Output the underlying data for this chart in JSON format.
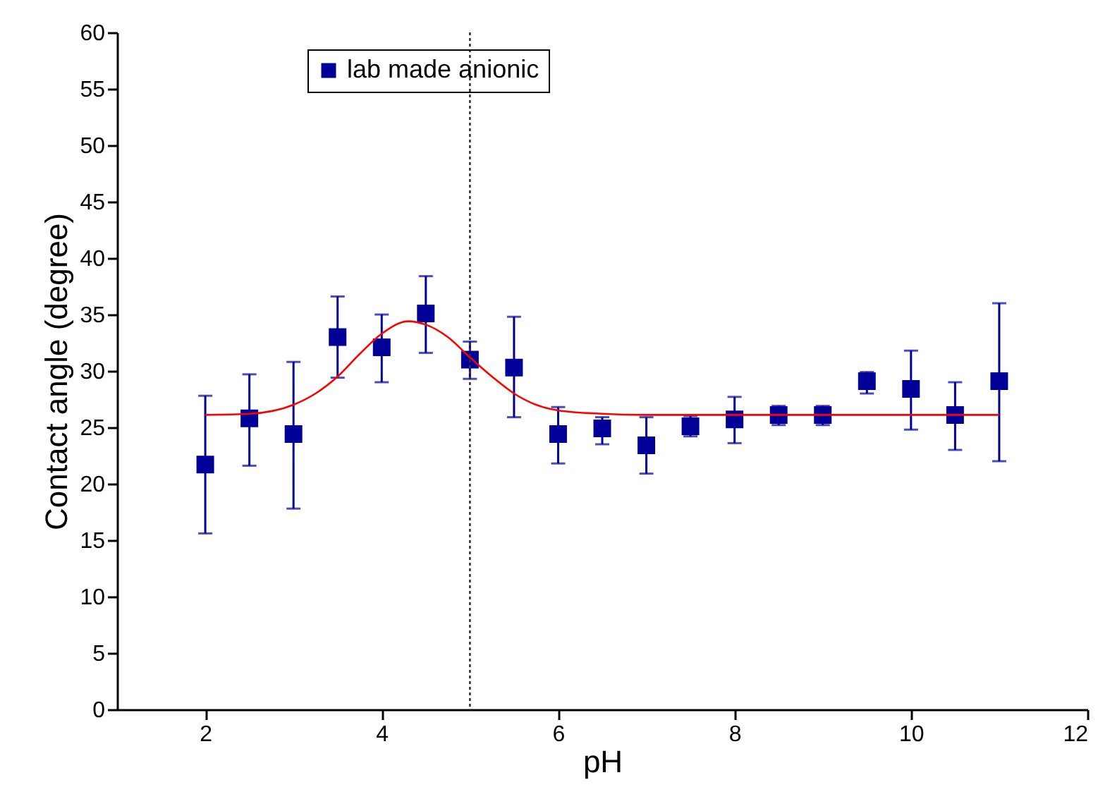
{
  "chart_data": {
    "type": "scatter",
    "xlabel": "pH",
    "ylabel": "Contact angle (degree)",
    "xlim": [
      1,
      12
    ],
    "xticks": [
      2,
      4,
      6,
      8,
      10,
      12
    ],
    "ylim": [
      0,
      60
    ],
    "yticks": [
      0,
      5,
      10,
      15,
      20,
      25,
      30,
      35,
      40,
      45,
      50,
      55,
      60
    ],
    "grid": false,
    "legend": "top left",
    "series": [
      {
        "name": "lab made anionic",
        "color": "#000099",
        "marker": "square",
        "x": [
          2,
          2.5,
          3,
          3.5,
          4,
          4.5,
          5,
          5.5,
          6,
          6.5,
          7,
          7.5,
          8,
          8.5,
          9,
          9.5,
          10,
          10.5,
          11
        ],
        "values": [
          21.7,
          25.8,
          24.4,
          33.0,
          32.1,
          35.1,
          31.0,
          30.3,
          24.4,
          24.9,
          23.4,
          25.1,
          25.7,
          26.1,
          26.1,
          29.1,
          28.4,
          26.1,
          29.1
        ],
        "errors": [
          [
            15.6,
            27.8
          ],
          [
            21.6,
            29.7
          ],
          [
            17.8,
            30.8
          ],
          [
            29.4,
            36.6
          ],
          [
            29.0,
            35.0
          ],
          [
            31.6,
            38.4
          ],
          [
            29.3,
            32.6
          ],
          [
            25.9,
            34.8
          ],
          [
            21.8,
            26.8
          ],
          [
            23.5,
            25.9
          ],
          [
            20.9,
            25.9
          ],
          [
            24.2,
            26.0
          ],
          [
            23.6,
            27.7
          ],
          [
            25.2,
            26.9
          ],
          [
            25.2,
            26.9
          ],
          [
            28.0,
            29.9
          ],
          [
            24.8,
            31.8
          ],
          [
            23.0,
            29.0
          ],
          [
            22.0,
            36.0
          ]
        ]
      },
      {
        "type": "line",
        "color": "#ff0000",
        "line_style": "solid",
        "x": [
          2,
          2.5,
          3,
          3.25,
          3.5,
          3.75,
          4,
          4.3,
          4.5,
          4.75,
          5,
          5.25,
          5.5,
          5.75,
          6,
          6.5,
          7,
          8,
          11
        ],
        "values": [
          26.1,
          26.2,
          27.0,
          28.0,
          29.5,
          31.5,
          33.3,
          34.4,
          34.1,
          33.0,
          31.2,
          29.5,
          28.0,
          27.0,
          26.5,
          26.2,
          26.1,
          26.1,
          26.1
        ]
      }
    ],
    "ref_lines": [
      {
        "axis": "x",
        "value": 5,
        "color": "#333333",
        "line_style": "dotted"
      }
    ]
  }
}
